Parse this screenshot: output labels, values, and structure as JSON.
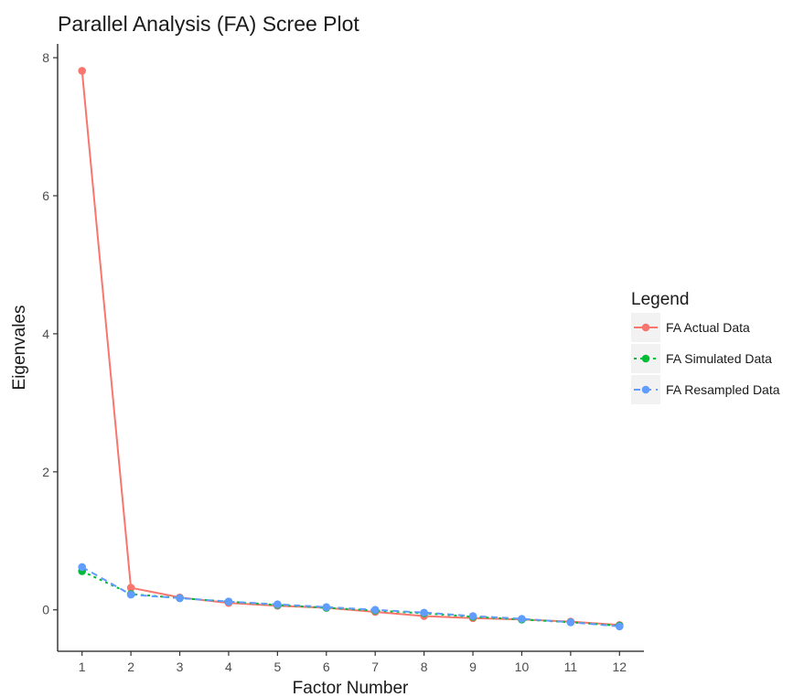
{
  "chart_data": {
    "type": "line",
    "title": "Parallel Analysis (FA) Scree Plot",
    "xlabel": "Factor Number",
    "ylabel": "Eigenvales",
    "x": [
      1,
      2,
      3,
      4,
      5,
      6,
      7,
      8,
      9,
      10,
      11,
      12
    ],
    "xticks": [
      "1",
      "2",
      "3",
      "4",
      "5",
      "6",
      "7",
      "8",
      "9",
      "10",
      "11",
      "12"
    ],
    "yticks": [
      0,
      2,
      4,
      6,
      8
    ],
    "xlim": [
      0.5,
      12.5
    ],
    "ylim": [
      -0.6,
      8.2
    ],
    "grid": false,
    "legend": {
      "title": "Legend",
      "position": "right"
    },
    "series": [
      {
        "name": "FA Actual Data",
        "color": "#F8766D",
        "linestyle": "solid",
        "values": [
          7.81,
          0.32,
          0.18,
          0.1,
          0.06,
          0.03,
          -0.03,
          -0.09,
          -0.12,
          -0.14,
          -0.17,
          -0.22
        ]
      },
      {
        "name": "FA Simulated Data",
        "color": "#00BA38",
        "linestyle": "dotted",
        "values": [
          0.56,
          0.23,
          0.17,
          0.12,
          0.07,
          0.03,
          -0.01,
          -0.05,
          -0.1,
          -0.14,
          -0.18,
          -0.23
        ]
      },
      {
        "name": "FA Resampled Data",
        "color": "#619CFF",
        "linestyle": "dashed",
        "values": [
          0.62,
          0.22,
          0.17,
          0.12,
          0.08,
          0.04,
          0.0,
          -0.04,
          -0.09,
          -0.13,
          -0.18,
          -0.24
        ]
      }
    ]
  }
}
